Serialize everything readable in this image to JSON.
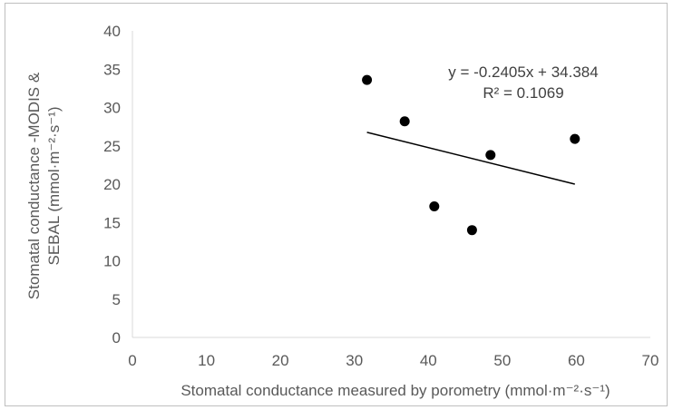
{
  "chart_data": {
    "type": "scatter",
    "xlabel": "Stomatal conductance measured by porometry (mmol·m⁻²·s⁻¹)",
    "ylabel_line1": "Stomatal conductance -MODIS &",
    "ylabel_line2": "SEBAL (mmol·m⁻²·s⁻¹)",
    "xlim": [
      0,
      70
    ],
    "ylim": [
      0,
      40
    ],
    "xticks": [
      0,
      10,
      20,
      30,
      40,
      50,
      60,
      70
    ],
    "yticks": [
      0,
      5,
      10,
      15,
      20,
      25,
      30,
      35,
      40
    ],
    "points": [
      {
        "x": 31.7,
        "y": 33.6
      },
      {
        "x": 36.8,
        "y": 28.2
      },
      {
        "x": 40.8,
        "y": 17.1
      },
      {
        "x": 45.9,
        "y": 14.0
      },
      {
        "x": 48.4,
        "y": 23.8
      },
      {
        "x": 59.8,
        "y": 25.9
      }
    ],
    "trendline": {
      "slope": -0.2405,
      "intercept": 34.384,
      "x_range": [
        31.7,
        59.8
      ]
    },
    "equation": "y = -0.2405x + 34.384",
    "r_squared": "R² = 0.1069",
    "grid": false,
    "colors": {
      "points": "#000000",
      "trendline": "#000000",
      "axis": "#d9d9d9",
      "text": "#595959"
    }
  }
}
